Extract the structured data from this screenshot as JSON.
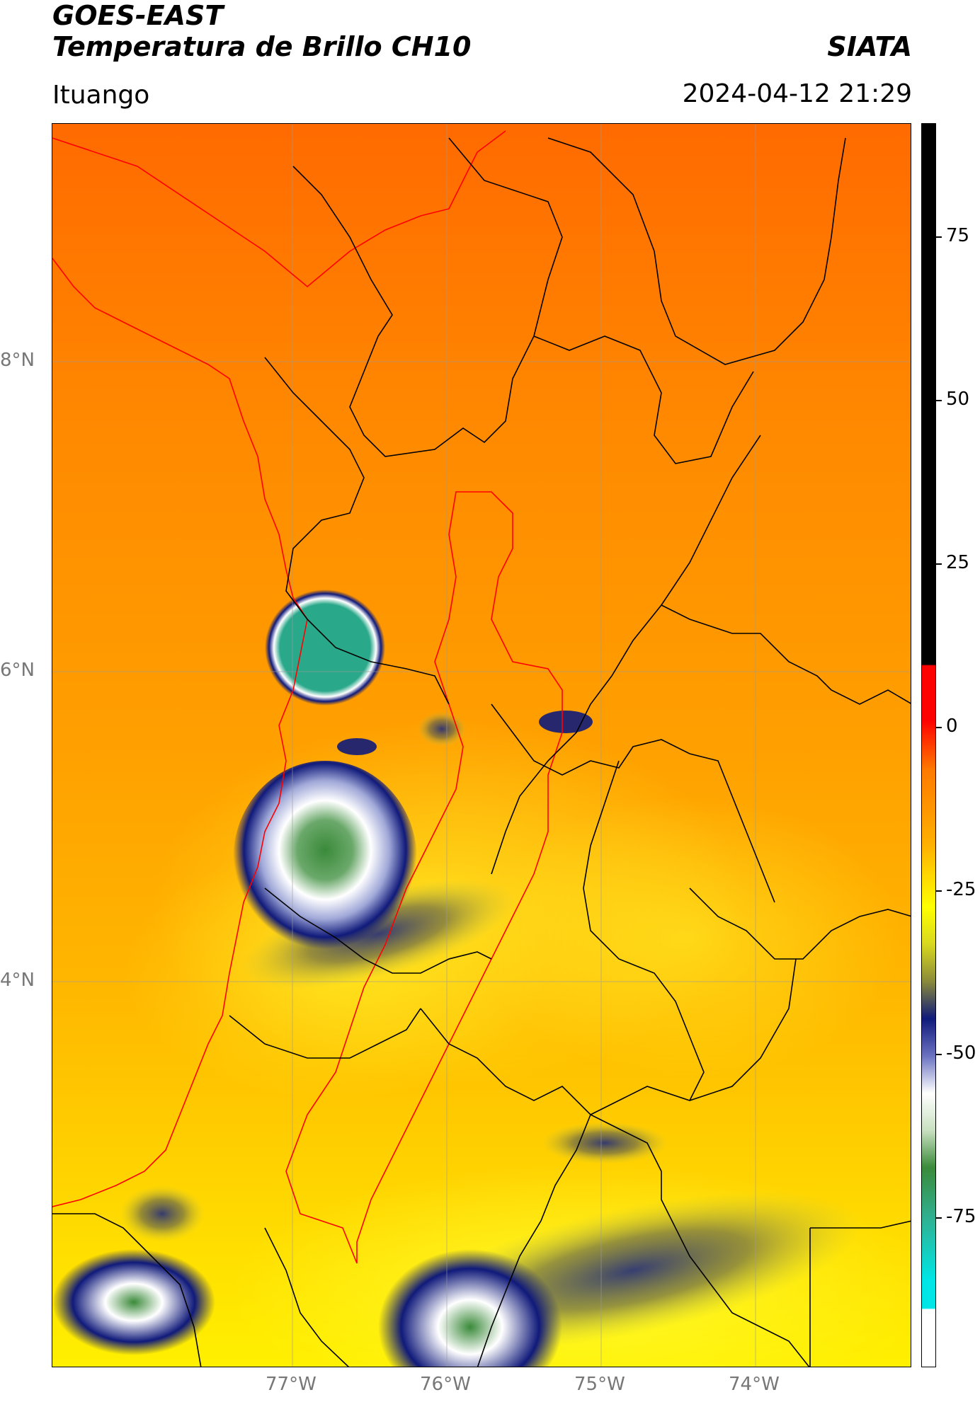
{
  "header": {
    "satellite": "GOES-EAST",
    "product": "Temperatura de Brillo CH10",
    "organization": "SIATA",
    "location": "Ituango",
    "timestamp": "2024-04-12 21:29"
  },
  "map": {
    "lat_labels": [
      "8°N",
      "6°N",
      "4°N"
    ],
    "lon_labels": [
      "77°W",
      "76°W",
      "75°W",
      "74°W"
    ]
  },
  "colorbar": {
    "tick_labels": [
      "75",
      "50",
      "25",
      "0",
      "-25",
      "-50",
      "-75"
    ],
    "colors": {
      "hot": "#000000",
      "red": "#ff0000",
      "orange": "#ff7a00",
      "yellow": "#ffff00",
      "olive": "#8a8a3a",
      "navy": "#101a7a",
      "white": "#ffffff",
      "green": "#3a8a3a",
      "cyan": "#00e6e6"
    }
  }
}
